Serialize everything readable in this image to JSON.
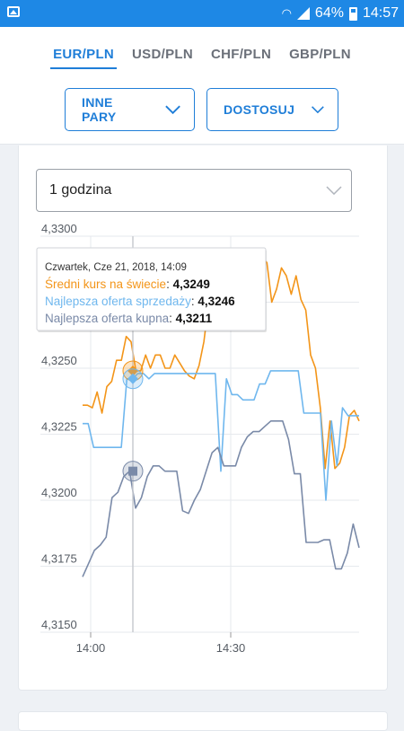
{
  "status_bar": {
    "battery": "64%",
    "time": "14:57"
  },
  "tabs": [
    {
      "label": "EUR/PLN",
      "active": true
    },
    {
      "label": "USD/PLN",
      "active": false
    },
    {
      "label": "CHF/PLN",
      "active": false
    },
    {
      "label": "GBP/PLN",
      "active": false
    }
  ],
  "buttons": {
    "other_pairs": "INNE PARY",
    "customize": "DOSTOSUJ"
  },
  "period_select": {
    "value": "1 godzina"
  },
  "colors": {
    "accent": "#1f7ed8",
    "status_bar": "#1e88e5",
    "world_avg": "#f39519",
    "best_sell": "#6fb7ee",
    "best_buy": "#7a8aa8"
  },
  "chart_data": {
    "type": "line",
    "ylim": [
      4.315,
      4.33
    ],
    "yticks": [
      "4,3150",
      "4,3175",
      "4,3200",
      "4,3225",
      "4,3250",
      "4,3275",
      "4,3300"
    ],
    "xticks": [
      "14:00",
      "14:30"
    ],
    "tooltip": {
      "date": "Czwartek, Cze 21, 2018, 14:09",
      "rows": [
        {
          "label": "Średni kurs na świecie",
          "value": "4,3249",
          "color": "#f39519"
        },
        {
          "label": "Najlepsza oferta sprzedaży",
          "value": "4,3246",
          "color": "#6fb7ee"
        },
        {
          "label": "Najlepsza oferta kupna",
          "value": "4,3211",
          "color": "#7a8aa8"
        }
      ]
    },
    "series": [
      {
        "name": "Średni kurs na świecie",
        "color": "#f39519",
        "x": [
          0,
          1,
          2,
          3,
          4,
          5,
          6,
          7,
          8,
          9,
          10,
          11,
          12,
          13,
          14,
          15,
          16,
          17,
          18,
          19,
          20,
          21,
          22,
          23,
          24,
          25,
          26,
          27,
          28,
          29,
          30,
          31,
          32,
          33,
          34,
          35,
          36,
          37,
          38,
          39,
          40,
          41,
          42,
          43,
          44,
          45,
          46,
          47,
          48,
          49,
          50,
          51,
          52,
          53,
          54,
          55,
          56,
          57
        ],
        "values": [
          4.3236,
          4.3236,
          4.3235,
          4.3241,
          4.3233,
          4.3243,
          4.3245,
          4.3253,
          4.3253,
          4.3262,
          4.326,
          4.3249,
          4.3249,
          4.3255,
          4.325,
          4.3255,
          4.3255,
          4.325,
          4.325,
          4.3255,
          4.3252,
          4.3249,
          4.3247,
          4.3246,
          4.3251,
          4.326,
          4.3275,
          4.3285,
          4.328,
          4.3267,
          4.3269,
          4.3272,
          4.3272,
          4.3275,
          4.328,
          4.3289,
          4.3288,
          4.3292,
          4.329,
          4.3275,
          4.328,
          4.3288,
          4.3285,
          4.3278,
          4.3285,
          4.3276,
          4.3272,
          4.3255,
          4.325,
          4.3235,
          4.3212,
          4.323,
          4.3212,
          4.3214,
          4.322,
          4.3232,
          4.3234,
          4.323
        ],
        "render": "main"
      },
      {
        "name": "Najlepsza oferta sprzedaży",
        "color": "#6fb7ee",
        "values": [
          4.3229,
          4.3229,
          4.322,
          4.322,
          4.322,
          4.322,
          4.322,
          4.322,
          4.3246,
          4.3246,
          4.3248,
          4.3248,
          4.3246,
          4.3248,
          4.3248,
          4.3248,
          4.3248,
          4.3248,
          4.3248,
          4.3248,
          4.3248,
          4.3248,
          4.3248,
          4.3248,
          4.3248,
          4.3211,
          4.3246,
          4.324,
          4.324,
          4.3238,
          4.3238,
          4.3238,
          4.3244,
          4.3244,
          4.3249,
          4.3249,
          4.3249,
          4.3249,
          4.3249,
          4.3249,
          4.3233,
          4.3233,
          4.3233,
          4.3233,
          4.32,
          4.323,
          4.3213,
          4.3235,
          4.3232,
          4.3232,
          4.3232
        ]
      },
      {
        "name": "Najlepsza oferta kupna",
        "color": "#7a8aa8",
        "values": [
          4.3171,
          4.3176,
          4.3181,
          4.3183,
          4.3186,
          4.3201,
          4.3203,
          4.3209,
          4.3211,
          4.3197,
          4.3201,
          4.3209,
          4.3213,
          4.3213,
          4.3211,
          4.3211,
          4.3211,
          4.3196,
          4.3195,
          4.32,
          4.3204,
          4.3211,
          4.3218,
          4.322,
          4.3213,
          4.3213,
          4.3213,
          4.322,
          4.3224,
          4.3226,
          4.3226,
          4.3228,
          4.323,
          4.323,
          4.323,
          4.3223,
          4.321,
          4.321,
          4.3184,
          4.3184,
          4.3184,
          4.3185,
          4.3185,
          4.3174,
          4.3174,
          4.318,
          4.3191,
          4.3182
        ]
      }
    ]
  }
}
